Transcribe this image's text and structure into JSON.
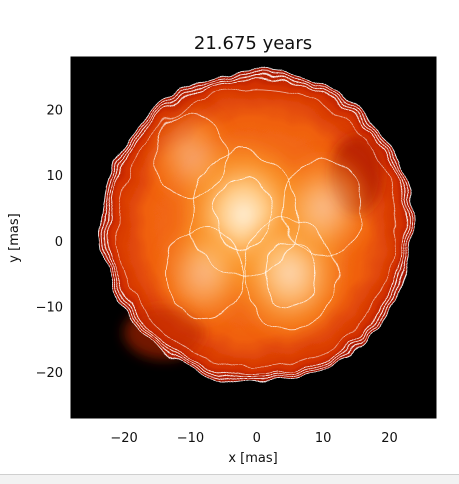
{
  "chart_data": {
    "type": "heatmap",
    "title": "21.675 years",
    "xlabel": "x [mas]",
    "ylabel": "y [mas]",
    "xlim": [
      -28,
      27
    ],
    "ylim": [
      -27,
      28
    ],
    "x_ticks": [
      -20,
      -10,
      0,
      10,
      20
    ],
    "y_ticks": [
      -20,
      -10,
      0,
      10,
      20
    ],
    "x_tick_labels": [
      "−20",
      "−10",
      "0",
      "10",
      "20"
    ],
    "y_tick_labels": [
      "−20",
      "−10",
      "0",
      "10",
      "20"
    ],
    "background_color": "#000000",
    "colormap": [
      "#8a0000",
      "#d42a00",
      "#f56a10",
      "#fb9a2e",
      "#ffcf8a",
      "#fff1dc"
    ],
    "contour_color": "#ffffff",
    "disk": {
      "center": [
        0,
        2
      ],
      "radius": 23.5
    },
    "features": [
      {
        "x": -2,
        "y": 4,
        "level": 1.0
      },
      {
        "x": 5,
        "y": -5,
        "level": 0.8
      },
      {
        "x": -8,
        "y": -5,
        "level": 0.55
      },
      {
        "x": 10,
        "y": 5,
        "level": 0.6
      },
      {
        "x": -10,
        "y": 13,
        "level": 0.45
      }
    ]
  }
}
